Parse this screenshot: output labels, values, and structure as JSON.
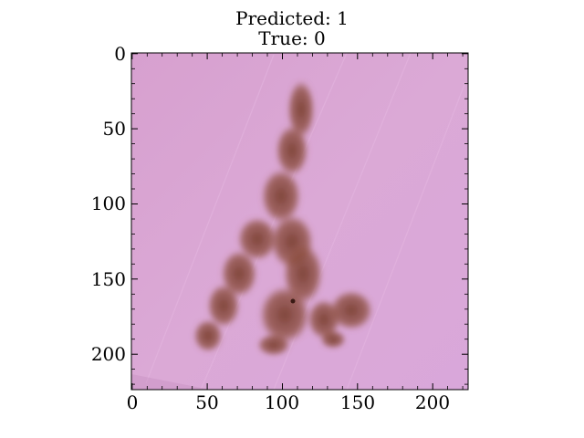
{
  "figure": {
    "title_line1": "Predicted: 1",
    "title_line2": "True: 0"
  },
  "axes": {
    "x_ticks": [
      "0",
      "50",
      "100",
      "150",
      "200"
    ],
    "y_ticks": [
      "0",
      "50",
      "100",
      "150",
      "200"
    ],
    "x_range": [
      0,
      224
    ],
    "y_range": [
      0,
      224
    ],
    "y_inverted": true
  },
  "image": {
    "subject": "dermoscopy skin lesion",
    "skin_color": "#d9a3d2",
    "lesion_color": "#8a4a3e"
  }
}
